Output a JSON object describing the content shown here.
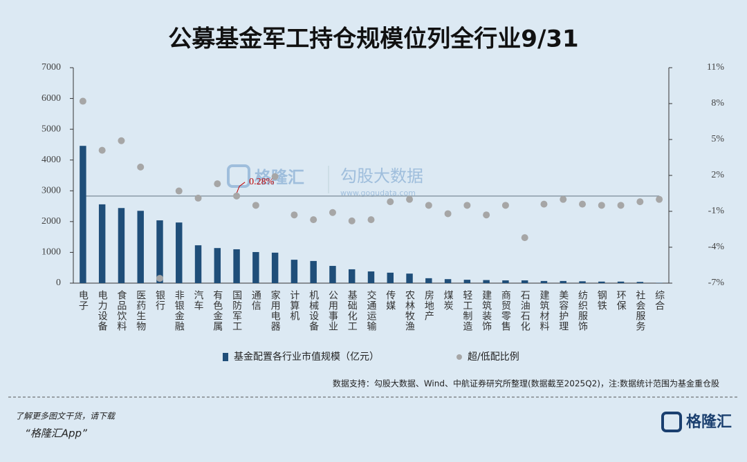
{
  "chart_data": {
    "type": "bar",
    "title": "公募基金军工持仓规模位列全行业9/31",
    "categories": [
      "电子",
      "电力设备",
      "食品饮料",
      "医药生物",
      "银行",
      "非银金融",
      "汽车",
      "有色金属",
      "国防军工",
      "通信",
      "家用电器",
      "计算机",
      "机械设备",
      "公用事业",
      "基础化工",
      "交通运输",
      "传媒",
      "农林牧渔",
      "房地产",
      "煤炭",
      "轻工制造",
      "建筑装饰",
      "商贸零售",
      "石油石化",
      "建筑材料",
      "美容护理",
      "纺织服饰",
      "钢铁",
      "环保",
      "社会服务",
      "综合"
    ],
    "series": [
      {
        "name": "基金配置各行业市值规模（亿元）",
        "type": "bar",
        "color": "#1f4e79",
        "values": [
          4460,
          2560,
          2440,
          2350,
          2040,
          1970,
          1230,
          1140,
          1100,
          1010,
          990,
          760,
          720,
          560,
          450,
          380,
          340,
          310,
          160,
          130,
          110,
          100,
          90,
          90,
          70,
          70,
          60,
          50,
          50,
          40,
          10
        ]
      },
      {
        "name": "超/低配比例",
        "type": "scatter",
        "axis": "y2",
        "color": "#a6a6a6",
        "values": [
          8.2,
          4.1,
          4.9,
          2.7,
          -6.6,
          0.7,
          0.1,
          1.3,
          0.28,
          -0.5,
          1.9,
          -1.3,
          -1.7,
          -1.1,
          -1.8,
          -1.7,
          -0.2,
          0.0,
          -0.5,
          -1.2,
          -0.5,
          -1.3,
          -0.5,
          -3.2,
          -0.4,
          0.0,
          -0.4,
          -0.5,
          -0.5,
          -0.2,
          0.0
        ]
      }
    ],
    "ylim": [
      0,
      7000
    ],
    "yticks": [
      0,
      1000,
      2000,
      3000,
      4000,
      5000,
      6000,
      7000
    ],
    "y2lim": [
      -7,
      11
    ],
    "y2ticks": [
      {
        "value": -7,
        "label": "-7%"
      },
      {
        "value": -4,
        "label": "-4%"
      },
      {
        "value": -1,
        "label": "-1%"
      },
      {
        "value": 2,
        "label": "2%"
      },
      {
        "value": 5,
        "label": "5%"
      },
      {
        "value": 8,
        "label": "8%"
      },
      {
        "value": 11,
        "label": "11%"
      }
    ],
    "annotation": {
      "value": 0.28,
      "label": "0.28%",
      "color": "#c00000"
    },
    "source": "数据支持：勾股大数据、Wind、中航证券研究所整理(数据截至2025Q2)，注:数据统计范围为基金重仓股"
  },
  "watermark": {
    "brand": "格隆汇",
    "site": "勾股大数据",
    "url": "www.gogudata.com"
  },
  "footer": {
    "line1": "了解更多图文干货，请下载",
    "line2": "“格隆汇App”",
    "logo": "格隆汇"
  }
}
